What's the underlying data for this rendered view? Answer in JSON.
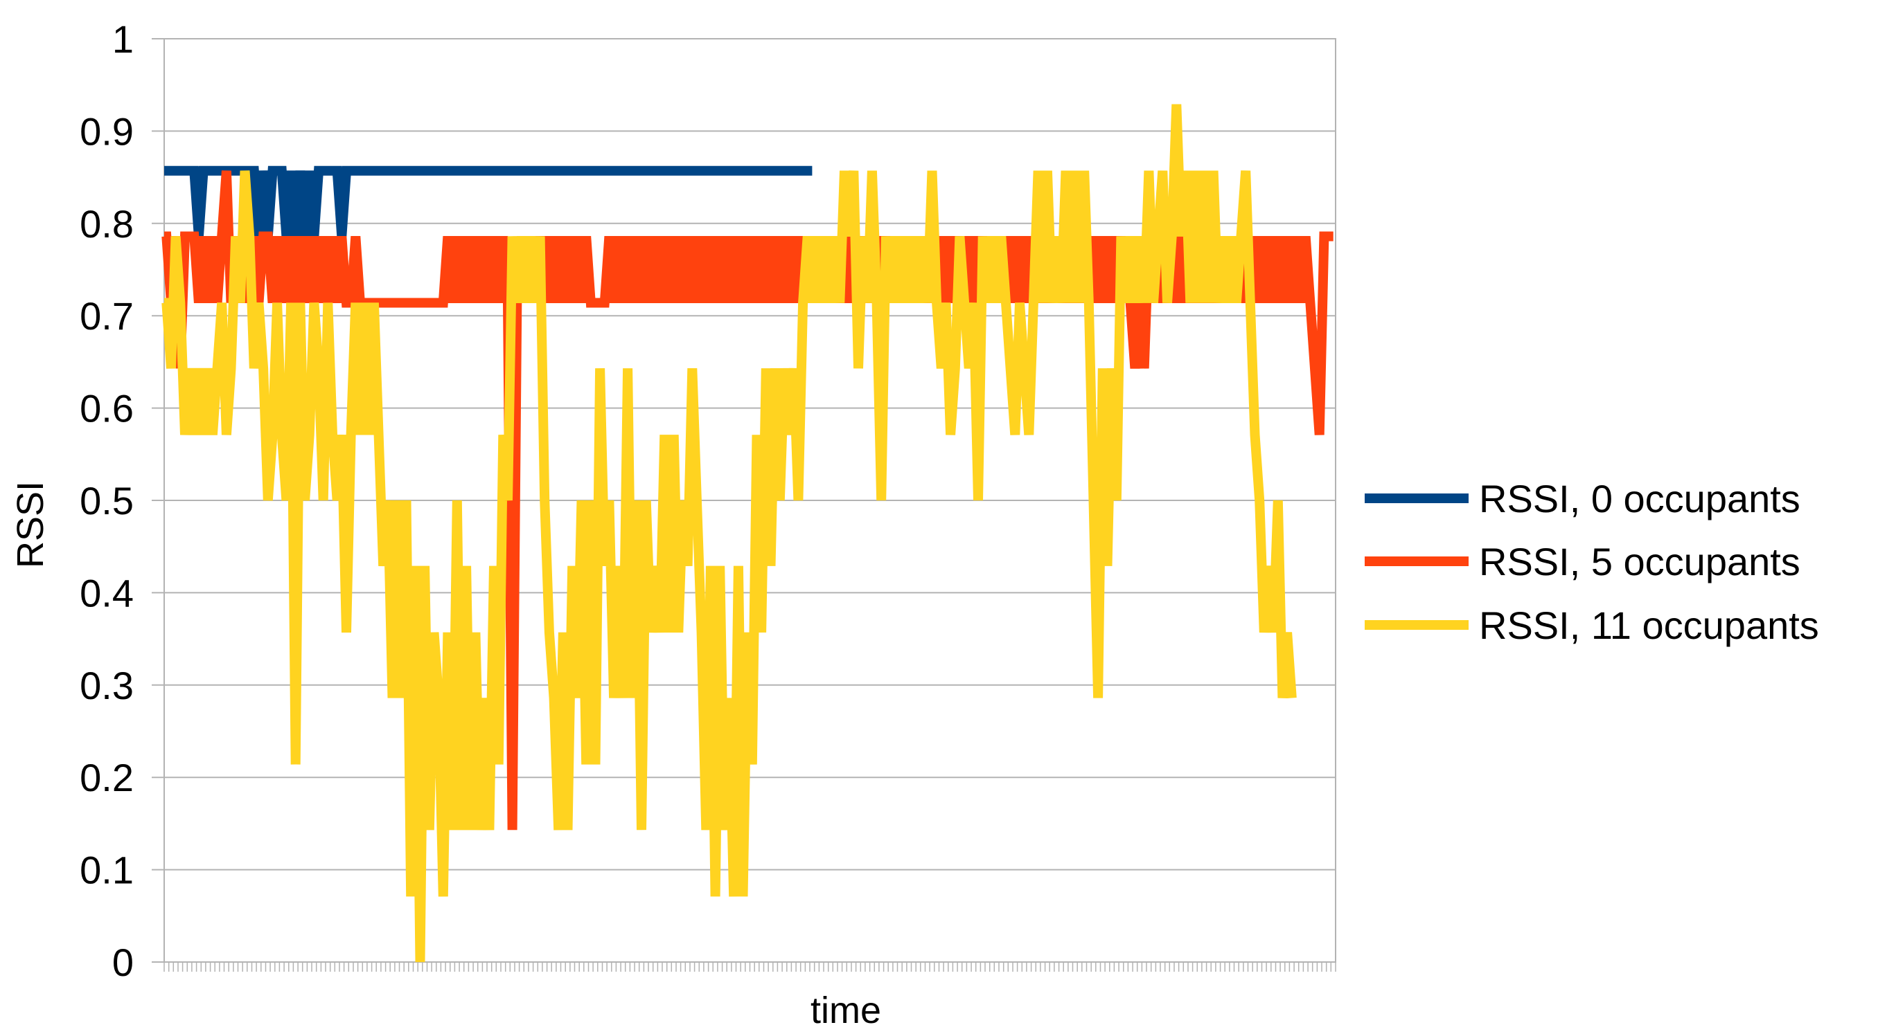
{
  "chart_data": {
    "type": "line",
    "title": "",
    "xlabel": "time",
    "ylabel": "RSSI",
    "ylim": [
      0,
      1
    ],
    "yticks": [
      0,
      0.1,
      0.2,
      0.3,
      0.4,
      0.5,
      0.6,
      0.7,
      0.8,
      0.9,
      1
    ],
    "ytick_labels": [
      "0",
      "0.1",
      "0.2",
      "0.3",
      "0.4",
      "0.5",
      "0.6",
      "0.7",
      "0.8",
      "0.9",
      "1"
    ],
    "grid": "horizontal",
    "legend": "right",
    "x_points": 254,
    "series": [
      {
        "name": "RSSI, 0 occupants",
        "color": "#004586",
        "values": [
          0.857,
          0.857,
          0.857,
          0.857,
          0.857,
          0.857,
          0.857,
          0.786,
          0.857,
          0.857,
          0.857,
          0.857,
          0.857,
          0.857,
          0.857,
          0.857,
          0.857,
          0.857,
          0.857,
          0.857,
          0.786,
          0.857,
          0.786,
          0.857,
          0.857,
          0.857,
          0.786,
          0.857,
          0.786,
          0.857,
          0.786,
          0.857,
          0.786,
          0.857,
          0.857,
          0.857,
          0.857,
          0.857,
          0.786,
          0.857,
          0.857,
          0.857,
          0.857,
          0.857,
          0.857,
          0.857,
          0.857,
          0.857,
          0.857,
          0.857,
          0.857,
          0.857,
          0.857,
          0.857,
          0.857,
          0.857,
          0.857,
          0.857,
          0.857,
          0.857,
          0.857,
          0.857,
          0.857,
          0.857,
          0.857,
          0.857,
          0.857,
          0.857,
          0.857,
          0.857,
          0.857,
          0.857,
          0.857,
          0.857,
          0.857,
          0.857,
          0.857,
          0.857,
          0.857,
          0.857,
          0.857,
          0.857,
          0.857,
          0.857,
          0.857,
          0.857,
          0.857,
          0.857,
          0.857,
          0.857,
          0.857,
          0.857,
          0.857,
          0.857,
          0.857,
          0.857,
          0.857,
          0.857,
          0.857,
          0.857,
          0.857,
          0.857,
          0.857,
          0.857,
          0.857,
          0.857,
          0.857,
          0.857,
          0.857,
          0.857,
          0.857,
          0.857,
          0.857,
          0.857,
          0.857,
          0.857,
          0.857,
          0.857,
          0.857,
          0.857,
          0.857,
          0.857,
          0.857,
          0.857,
          0.857,
          0.857,
          0.857,
          0.857,
          0.857,
          0.857,
          0.857,
          0.857,
          0.857,
          0.857,
          0.857,
          0.857,
          0.857,
          0.857,
          0.857,
          0.857,
          0.857
        ]
      },
      {
        "name": "RSSI, 5 occupants",
        "color": "#ff420e",
        "values": [
          0.786,
          0.714,
          0.786,
          0.643,
          0.786,
          0.786,
          0.786,
          0.714,
          0.786,
          0.714,
          0.786,
          0.714,
          0.786,
          0.857,
          0.714,
          0.786,
          0.714,
          0.786,
          0.714,
          0.786,
          0.714,
          0.786,
          0.786,
          0.714,
          0.786,
          0.714,
          0.786,
          0.714,
          0.786,
          0.714,
          0.786,
          0.714,
          0.786,
          0.714,
          0.786,
          0.714,
          0.786,
          0.714,
          0.786,
          0.714,
          0.714,
          0.786,
          0.714,
          0.714,
          0.714,
          0.714,
          0.714,
          0.714,
          0.714,
          0.714,
          0.714,
          0.714,
          0.714,
          0.714,
          0.714,
          0.714,
          0.714,
          0.714,
          0.714,
          0.714,
          0.714,
          0.786,
          0.714,
          0.786,
          0.714,
          0.786,
          0.714,
          0.786,
          0.714,
          0.786,
          0.714,
          0.786,
          0.714,
          0.786,
          0.714,
          0.143,
          0.714,
          0.786,
          0.714,
          0.786,
          0.714,
          0.786,
          0.714,
          0.786,
          0.714,
          0.786,
          0.714,
          0.786,
          0.714,
          0.786,
          0.714,
          0.786,
          0.714,
          0.714,
          0.714,
          0.714,
          0.786,
          0.714,
          0.786,
          0.714,
          0.786,
          0.714,
          0.786,
          0.714,
          0.786,
          0.714,
          0.786,
          0.714,
          0.786,
          0.714,
          0.786,
          0.714,
          0.786,
          0.714,
          0.786,
          0.714,
          0.786,
          0.714,
          0.786,
          0.714,
          0.786,
          0.714,
          0.786,
          0.714,
          0.786,
          0.714,
          0.786,
          0.714,
          0.786,
          0.714,
          0.786,
          0.714,
          0.786,
          0.714,
          0.786,
          0.714,
          0.786,
          0.714,
          0.786,
          0.714,
          0.786,
          0.714,
          0.786,
          0.714,
          0.786,
          0.714,
          0.786,
          0.714,
          0.786,
          0.714,
          0.786,
          0.714,
          0.786,
          0.714,
          0.786,
          0.714,
          0.786,
          0.714,
          0.786,
          0.714,
          0.786,
          0.714,
          0.786,
          0.714,
          0.786,
          0.714,
          0.786,
          0.714,
          0.786,
          0.714,
          0.786,
          0.714,
          0.786,
          0.714,
          0.786,
          0.714,
          0.786,
          0.714,
          0.786,
          0.714,
          0.786,
          0.714,
          0.786,
          0.714,
          0.786,
          0.714,
          0.786,
          0.714,
          0.786,
          0.714,
          0.786,
          0.714,
          0.786,
          0.714,
          0.786,
          0.714,
          0.786,
          0.714,
          0.786,
          0.714,
          0.786,
          0.714,
          0.786,
          0.714,
          0.786,
          0.714,
          0.786,
          0.714,
          0.786,
          0.714,
          0.643,
          0.714,
          0.643,
          0.786,
          0.714,
          0.786,
          0.714,
          0.786,
          0.714,
          0.786,
          0.714,
          0.786,
          0.714,
          0.786,
          0.714,
          0.786,
          0.714,
          0.786,
          0.714,
          0.786,
          0.714,
          0.786,
          0.714,
          0.786,
          0.714,
          0.786,
          0.714,
          0.786,
          0.714,
          0.786,
          0.714,
          0.786,
          0.714,
          0.786,
          0.714,
          0.786,
          0.714,
          0.786,
          0.714,
          0.643,
          0.571,
          0.786,
          0.786,
          0.786
        ]
      },
      {
        "name": "RSSI, 11 occupants",
        "color": "#ffd320",
        "values": [
          0.714,
          0.643,
          0.786,
          0.714,
          0.571,
          0.643,
          0.571,
          0.643,
          0.571,
          0.643,
          0.571,
          0.643,
          0.714,
          0.571,
          0.643,
          0.786,
          0.714,
          0.857,
          0.786,
          0.643,
          0.714,
          0.643,
          0.5,
          0.571,
          0.714,
          0.571,
          0.5,
          0.714,
          0.214,
          0.714,
          0.5,
          0.571,
          0.714,
          0.643,
          0.5,
          0.714,
          0.571,
          0.5,
          0.571,
          0.357,
          0.571,
          0.714,
          0.571,
          0.714,
          0.571,
          0.714,
          0.571,
          0.429,
          0.5,
          0.286,
          0.5,
          0.286,
          0.5,
          0.071,
          0.429,
          0.0,
          0.429,
          0.143,
          0.357,
          0.286,
          0.071,
          0.357,
          0.143,
          0.5,
          0.143,
          0.429,
          0.143,
          0.357,
          0.143,
          0.286,
          0.143,
          0.429,
          0.214,
          0.571,
          0.5,
          0.786,
          0.714,
          0.786,
          0.714,
          0.786,
          0.714,
          0.786,
          0.5,
          0.357,
          0.286,
          0.143,
          0.357,
          0.143,
          0.429,
          0.286,
          0.5,
          0.214,
          0.5,
          0.214,
          0.643,
          0.429,
          0.5,
          0.286,
          0.429,
          0.286,
          0.643,
          0.286,
          0.5,
          0.143,
          0.5,
          0.357,
          0.429,
          0.357,
          0.571,
          0.357,
          0.571,
          0.357,
          0.5,
          0.429,
          0.643,
          0.5,
          0.357,
          0.143,
          0.429,
          0.071,
          0.429,
          0.143,
          0.286,
          0.071,
          0.429,
          0.071,
          0.357,
          0.214,
          0.571,
          0.357,
          0.643,
          0.429,
          0.643,
          0.5,
          0.643,
          0.571,
          0.643,
          0.5,
          0.714,
          0.786,
          0.714,
          0.786,
          0.714,
          0.786,
          0.714,
          0.786,
          0.714,
          0.857,
          0.786,
          0.857,
          0.643,
          0.786,
          0.714,
          0.857,
          0.714,
          0.5,
          0.786,
          0.714,
          0.786,
          0.714,
          0.786,
          0.714,
          0.786,
          0.714,
          0.786,
          0.714,
          0.857,
          0.714,
          0.643,
          0.714,
          0.571,
          0.643,
          0.786,
          0.714,
          0.643,
          0.714,
          0.5,
          0.786,
          0.714,
          0.786,
          0.714,
          0.786,
          0.714,
          0.643,
          0.571,
          0.714,
          0.643,
          0.571,
          0.714,
          0.857,
          0.714,
          0.857,
          0.714,
          0.786,
          0.714,
          0.857,
          0.714,
          0.857,
          0.714,
          0.857,
          0.714,
          0.5,
          0.286,
          0.643,
          0.429,
          0.643,
          0.5,
          0.786,
          0.714,
          0.786,
          0.714,
          0.786,
          0.714,
          0.857,
          0.714,
          0.786,
          0.857,
          0.714,
          0.786,
          0.929,
          0.786,
          0.857,
          0.714,
          0.857,
          0.714,
          0.857,
          0.714,
          0.857,
          0.714,
          0.786,
          0.714,
          0.786,
          0.714,
          0.786,
          0.857,
          0.714,
          0.571,
          0.5,
          0.357,
          0.429,
          0.357,
          0.5,
          0.286,
          0.357,
          0.286
        ]
      }
    ]
  }
}
